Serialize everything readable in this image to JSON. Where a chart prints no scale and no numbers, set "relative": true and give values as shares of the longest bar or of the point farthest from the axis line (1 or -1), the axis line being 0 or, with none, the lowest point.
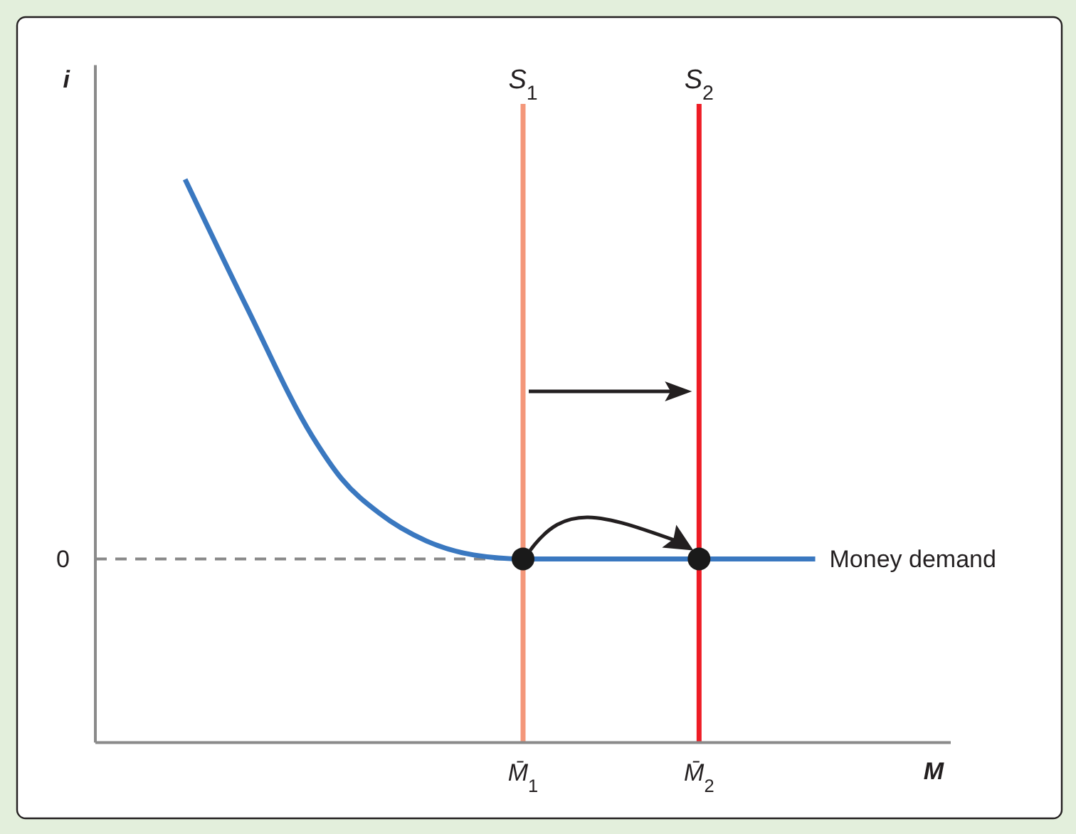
{
  "chart_data": {
    "type": "line",
    "relative": true,
    "xlabel": "M",
    "ylabel": "i",
    "xlim": [
      -1.43,
      3.43
    ],
    "xticks": [
      {
        "value": 1,
        "label": "M̄$_{1}$"
      },
      {
        "value": 2,
        "label": "M̄$_{2}$"
      }
    ],
    "series": [
      {
        "name": "Money demand",
        "color": "#3a78c0",
        "x": [
          -0.92,
          -0.57,
          -0.2,
          -0.03,
          0.18,
          0.45,
          0.72,
          1,
          2,
          2.66
        ],
        "values": [
          1,
          0.773,
          0.545,
          0.468,
          0.408,
          0.358,
          0.333,
          0.326,
          0.326,
          0.326
        ]
      },
      {
        "type": "scatter",
        "color": "#1a1a1a",
        "marker": "circle",
        "x": [
          1,
          2
        ],
        "values": [
          0.326,
          0.326
        ]
      }
    ],
    "ref_lines": [
      {
        "axis": "y",
        "value": 0.326,
        "label": "0",
        "color": "#888888",
        "line_style": "dashed"
      },
      {
        "axis": "x",
        "value": 1,
        "label": "S$_{1}$",
        "color": "#f4977a"
      },
      {
        "axis": "x",
        "value": 2,
        "label": "S$_{2}$",
        "color": "#ee1c25"
      }
    ],
    "grid": false
  }
}
